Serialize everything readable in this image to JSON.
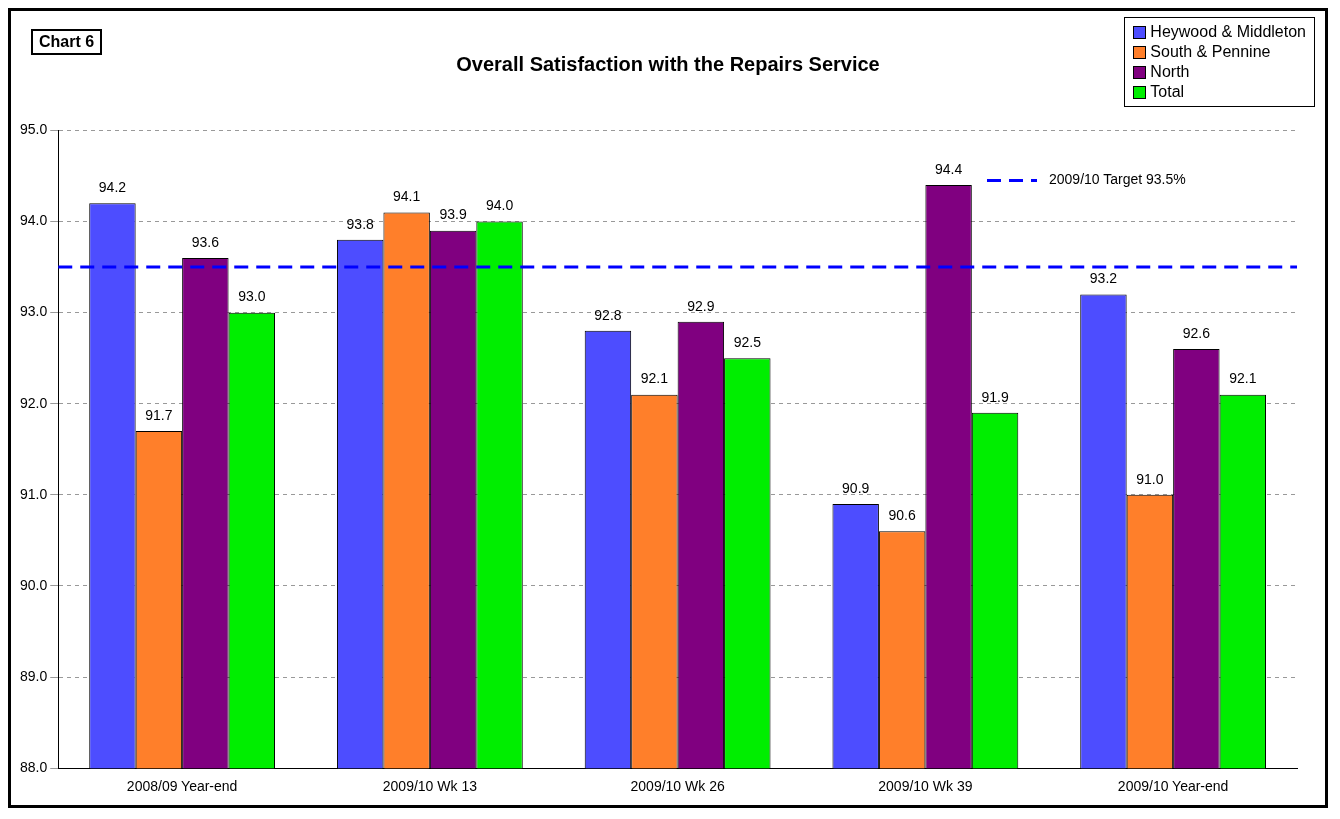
{
  "chart_data": {
    "type": "bar",
    "title": "Overall Satisfaction with the Repairs Service",
    "annotations": [
      "Chart 6"
    ],
    "categories": [
      "2008/09 Year-end",
      "2009/10 Wk 13",
      "2009/10 Wk 26",
      "2009/10 Wk 39",
      "2009/10 Year-end"
    ],
    "series": [
      {
        "name": "Heywood & Middleton",
        "color": "#4d4dff",
        "values": [
          94.2,
          93.8,
          92.8,
          90.9,
          93.2
        ],
        "value_labels": [
          "94.2",
          "93.8",
          "92.8",
          "90.9",
          "93.2"
        ]
      },
      {
        "name": "South & Pennine",
        "color": "#ff7f2a",
        "values": [
          91.7,
          94.1,
          92.1,
          90.6,
          91.0
        ],
        "value_labels": [
          "91.7",
          "94.1",
          "92.1",
          "90.6",
          "91.0"
        ]
      },
      {
        "name": "North",
        "color": "#800080",
        "values": [
          93.6,
          93.9,
          92.9,
          94.4,
          92.6
        ],
        "value_labels": [
          "93.6",
          "93.9",
          "92.9",
          "94.4",
          "92.6"
        ]
      },
      {
        "name": "Total",
        "color": "#00ee00",
        "values": [
          93.0,
          94.0,
          92.5,
          91.9,
          92.1
        ],
        "value_labels": [
          "93.0",
          "94.0",
          "92.5",
          "91.9",
          "92.1"
        ]
      }
    ],
    "ylim": [
      88,
      95
    ],
    "yticks": [
      {
        "value": 88,
        "label": "88.0"
      },
      {
        "value": 89,
        "label": "89.0"
      },
      {
        "value": 90,
        "label": "90.0"
      },
      {
        "value": 91,
        "label": "91.0"
      },
      {
        "value": 92,
        "label": "92.0"
      },
      {
        "value": 93,
        "label": "93.0"
      },
      {
        "value": 94,
        "label": "94.0"
      },
      {
        "value": 95,
        "label": "95.0"
      }
    ],
    "ref_lines": [
      {
        "axis": "y",
        "value": 93.5,
        "label": "2009/10 Target 93.5%",
        "color": "#0000ff",
        "line_style": "dashed"
      }
    ],
    "grid": "y",
    "legend": "top right"
  }
}
